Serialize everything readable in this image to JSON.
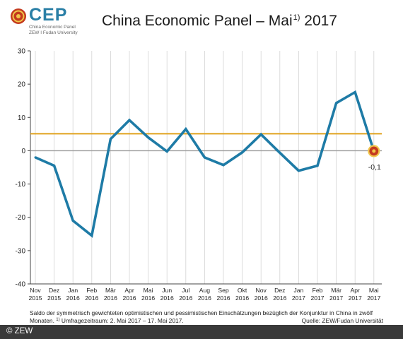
{
  "logo": {
    "name": "CEP",
    "subtitle_line1": "China Economic Panel",
    "subtitle_line2": "ZEW I Fudan University"
  },
  "title": {
    "main": "China Economic Panel – Mai",
    "sup": "1)",
    "year": "2017"
  },
  "footnote": {
    "line1": "Saldo der symmetrisch gewichteten optimistischen und pessimistischen Einschätzungen bezüglich der Konjunktur in China in zwölf",
    "line2_a": "Monaten. ",
    "line2_sup": "1)",
    "line2_b": " Umfragezeitraum: 2. Mai 2017 – 17. Mai 2017."
  },
  "source": "Quelle: ZEW/Fudan Universität",
  "copyright": "© ZEW",
  "colors": {
    "series": "#1e7ba6",
    "reference": "#e0a21c",
    "zero": "#9a9a9a",
    "marker": "#c43a1e",
    "footer": "#3a3a3a"
  },
  "chart_data": {
    "type": "line",
    "categories": [
      [
        "Nov",
        "2015"
      ],
      [
        "Dez",
        "2015"
      ],
      [
        "Jan",
        "2016"
      ],
      [
        "Feb",
        "2016"
      ],
      [
        "Mär",
        "2016"
      ],
      [
        "Apr",
        "2016"
      ],
      [
        "Mai",
        "2016"
      ],
      [
        "Jun",
        "2016"
      ],
      [
        "Jul",
        "2016"
      ],
      [
        "Aug",
        "2016"
      ],
      [
        "Sep",
        "2016"
      ],
      [
        "Okt",
        "2016"
      ],
      [
        "Nov",
        "2016"
      ],
      [
        "Dez",
        "2016"
      ],
      [
        "Jan",
        "2017"
      ],
      [
        "Feb",
        "2017"
      ],
      [
        "Mär",
        "2017"
      ],
      [
        "Apr",
        "2017"
      ],
      [
        "Mai",
        "2017"
      ]
    ],
    "series": [
      {
        "values": [
          -2.0,
          -4.5,
          -21.0,
          -25.5,
          3.5,
          9.2,
          4.0,
          -0.2,
          6.5,
          -2.0,
          -4.3,
          -0.5,
          4.9,
          -0.6,
          -6.0,
          -4.5,
          14.3,
          17.6,
          -0.1
        ]
      }
    ],
    "reference_line": 5.1,
    "last_value_label": "-0,1",
    "ylim": [
      -40,
      30
    ],
    "yticks": [
      30,
      20,
      10,
      0,
      -10,
      -20,
      -30,
      -40
    ],
    "grid": "vertical"
  }
}
